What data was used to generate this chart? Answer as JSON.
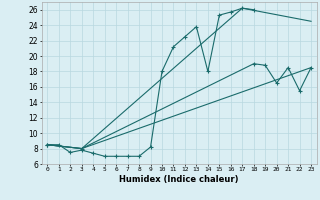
{
  "xlabel": "Humidex (Indice chaleur)",
  "bg_color": "#daeef3",
  "grid_color": "#b8d8e0",
  "line_color": "#1a6b6b",
  "xlim": [
    -0.5,
    23.5
  ],
  "ylim": [
    6,
    27
  ],
  "yticks": [
    6,
    8,
    10,
    12,
    14,
    16,
    18,
    20,
    22,
    24,
    26
  ],
  "xticks": [
    0,
    1,
    2,
    3,
    4,
    5,
    6,
    7,
    8,
    9,
    10,
    11,
    12,
    13,
    14,
    15,
    16,
    17,
    18,
    19,
    20,
    21,
    22,
    23
  ],
  "line1_x": [
    0,
    1,
    2,
    3,
    4,
    5,
    6,
    7,
    8,
    9,
    10,
    11,
    12,
    13,
    14,
    15,
    16,
    17,
    18
  ],
  "line1_y": [
    8.5,
    8.5,
    7.5,
    7.8,
    7.4,
    7.0,
    7.0,
    7.0,
    7.0,
    8.2,
    18.0,
    21.2,
    22.5,
    23.8,
    18.0,
    25.3,
    25.7,
    26.2,
    26.0
  ],
  "line2_x": [
    0,
    3,
    17,
    23
  ],
  "line2_y": [
    8.5,
    8.0,
    26.2,
    24.5
  ],
  "line3_x": [
    0,
    3,
    18,
    19,
    20,
    21,
    22,
    23
  ],
  "line3_y": [
    8.5,
    8.0,
    19.0,
    18.8,
    16.5,
    18.5,
    15.5,
    18.5
  ],
  "line4_x": [
    0,
    3,
    23
  ],
  "line4_y": [
    8.5,
    8.0,
    18.5
  ]
}
